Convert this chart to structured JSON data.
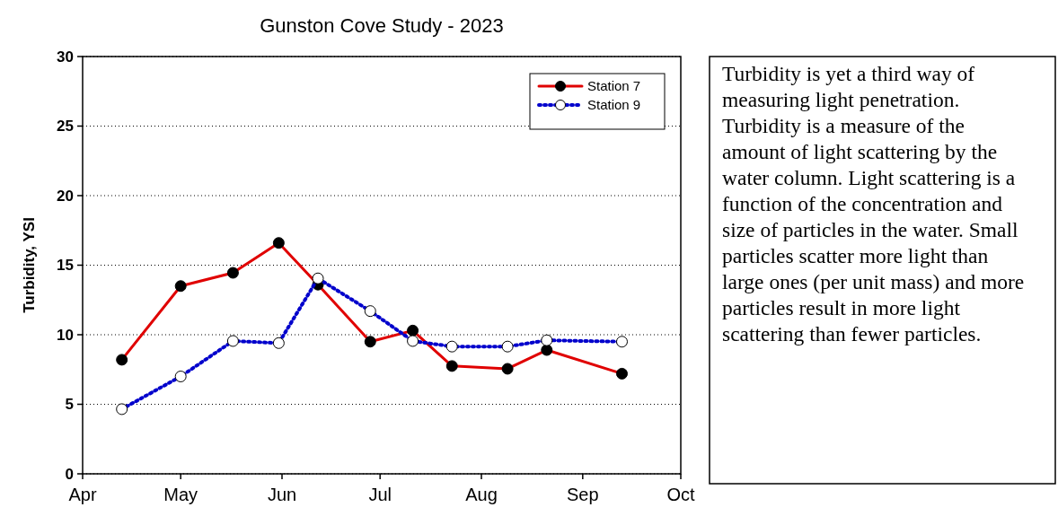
{
  "chart_data": {
    "type": "line",
    "title": "Gunston Cove Study - 2023",
    "ylabel": "Turbidity, YSI",
    "x": [
      "2023-04-13",
      "2023-05-01",
      "2023-05-17",
      "2023-05-31",
      "2023-06-12",
      "2023-06-28",
      "2023-07-11",
      "2023-07-23",
      "2023-08-09",
      "2023-08-21",
      "2023-09-13"
    ],
    "series": [
      {
        "name": "Station 7",
        "color": "#e00000",
        "line_style": "solid",
        "marker": "circle",
        "values": [
          8.2,
          13.5,
          14.45,
          16.6,
          13.6,
          9.5,
          10.3,
          7.75,
          7.55,
          8.9,
          7.2
        ]
      },
      {
        "name": "Station 9",
        "color": "#0000cc",
        "line_style": "dotted",
        "marker": "circle",
        "values": [
          4.65,
          7.0,
          9.55,
          9.4,
          14.05,
          11.7,
          9.55,
          9.15,
          9.15,
          9.6,
          9.5
        ]
      }
    ],
    "xlim": [
      "2023-04-01",
      "2023-10-01"
    ],
    "xticks": [
      {
        "value": "2023-04-01",
        "label": "Apr"
      },
      {
        "value": "2023-05-01",
        "label": "May"
      },
      {
        "value": "2023-06-01",
        "label": "Jun"
      },
      {
        "value": "2023-07-01",
        "label": "Jul"
      },
      {
        "value": "2023-08-01",
        "label": "Aug"
      },
      {
        "value": "2023-09-01",
        "label": "Sep"
      },
      {
        "value": "2023-10-01",
        "label": "Oct"
      }
    ],
    "ylim": [
      0,
      30
    ],
    "yticks": [
      0,
      5,
      10,
      15,
      20,
      25,
      30
    ],
    "grid": "y",
    "legend": "top right",
    "annotations": [
      "Turbidity is yet a third way of measuring light penetration. Turbidity is a measure of the amount of light scattering by the water column.  Light scattering is a function of the concentration and size of particles in the water. Small particles scatter more light than large ones (per unit mass) and more particles result in more light scattering than fewer particles."
    ]
  }
}
